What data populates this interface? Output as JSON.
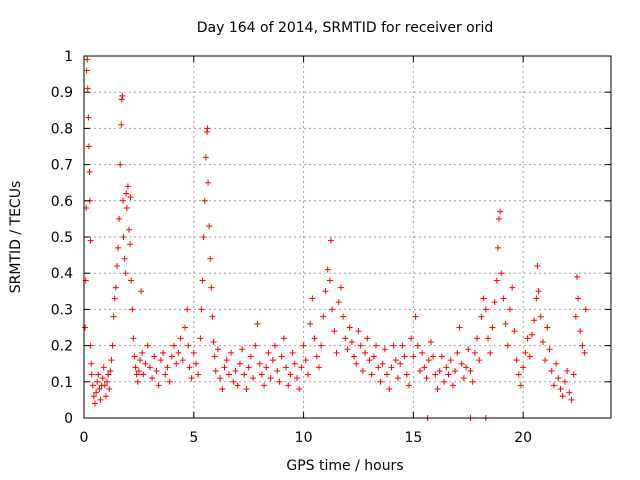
{
  "chart_data": {
    "type": "scatter",
    "title": "Day 164 of 2014, SRMTID for receiver orid",
    "xlabel": "GPS time / hours",
    "ylabel": "SRMTID / TECUs",
    "xlim": [
      0,
      24
    ],
    "ylim": [
      0,
      1
    ],
    "xticks": [
      0,
      5,
      10,
      15,
      20
    ],
    "xtick_labels": [
      "0",
      "5",
      "10",
      "15",
      "20"
    ],
    "yticks": [
      0,
      0.1,
      0.2,
      0.3,
      0.4,
      0.5,
      0.6,
      0.7,
      0.8,
      0.9,
      1
    ],
    "ytick_labels": [
      "0",
      "0.1",
      "0.2",
      "0.3",
      "0.4",
      "0.5",
      "0.6",
      "0.7",
      "0.8",
      "0.9",
      "1"
    ],
    "grid": true,
    "marker": "plus",
    "color": "#ff0000",
    "series": [
      {
        "name": "SRMTID",
        "points": [
          [
            0.05,
            0.25
          ],
          [
            0.08,
            0.38
          ],
          [
            0.1,
            0.58
          ],
          [
            0.12,
            0.96
          ],
          [
            0.15,
            0.99
          ],
          [
            0.17,
            0.91
          ],
          [
            0.2,
            0.83
          ],
          [
            0.22,
            0.75
          ],
          [
            0.25,
            0.68
          ],
          [
            0.27,
            0.6
          ],
          [
            0.3,
            0.49
          ],
          [
            0.3,
            0.2
          ],
          [
            0.33,
            0.15
          ],
          [
            0.35,
            0.12
          ],
          [
            0.4,
            0.09
          ],
          [
            0.45,
            0.06
          ],
          [
            0.5,
            0.04
          ],
          [
            0.55,
            0.07
          ],
          [
            0.6,
            0.1
          ],
          [
            0.65,
            0.12
          ],
          [
            0.7,
            0.08
          ],
          [
            0.75,
            0.05
          ],
          [
            0.8,
            0.09
          ],
          [
            0.85,
            0.11
          ],
          [
            0.9,
            0.14
          ],
          [
            0.95,
            0.09
          ],
          [
            1.0,
            0.06
          ],
          [
            1.05,
            0.1
          ],
          [
            1.1,
            0.12
          ],
          [
            1.15,
            0.08
          ],
          [
            1.2,
            0.13
          ],
          [
            1.25,
            0.16
          ],
          [
            1.3,
            0.2
          ],
          [
            1.35,
            0.28
          ],
          [
            1.4,
            0.33
          ],
          [
            1.45,
            0.36
          ],
          [
            1.5,
            0.42
          ],
          [
            1.55,
            0.47
          ],
          [
            1.6,
            0.55
          ],
          [
            1.65,
            0.7
          ],
          [
            1.7,
            0.81
          ],
          [
            1.72,
            0.88
          ],
          [
            1.75,
            0.89
          ],
          [
            1.78,
            0.6
          ],
          [
            1.8,
            0.5
          ],
          [
            1.85,
            0.44
          ],
          [
            1.9,
            0.4
          ],
          [
            1.92,
            0.62
          ],
          [
            1.95,
            0.58
          ],
          [
            2.0,
            0.64
          ],
          [
            2.05,
            0.52
          ],
          [
            2.1,
            0.48
          ],
          [
            2.12,
            0.61
          ],
          [
            2.15,
            0.38
          ],
          [
            2.2,
            0.3
          ],
          [
            2.25,
            0.22
          ],
          [
            2.3,
            0.17
          ],
          [
            2.35,
            0.14
          ],
          [
            2.4,
            0.12
          ],
          [
            2.45,
            0.1
          ],
          [
            2.5,
            0.13
          ],
          [
            2.55,
            0.16
          ],
          [
            2.6,
            0.35
          ],
          [
            2.65,
            0.18
          ],
          [
            2.7,
            0.12
          ],
          [
            2.8,
            0.15
          ],
          [
            2.9,
            0.2
          ],
          [
            3.0,
            0.14
          ],
          [
            3.1,
            0.11
          ],
          [
            3.2,
            0.17
          ],
          [
            3.3,
            0.13
          ],
          [
            3.4,
            0.09
          ],
          [
            3.5,
            0.16
          ],
          [
            3.6,
            0.18
          ],
          [
            3.7,
            0.12
          ],
          [
            3.8,
            0.14
          ],
          [
            3.9,
            0.1
          ],
          [
            4.0,
            0.17
          ],
          [
            4.1,
            0.2
          ],
          [
            4.2,
            0.15
          ],
          [
            4.3,
            0.18
          ],
          [
            4.4,
            0.22
          ],
          [
            4.5,
            0.16
          ],
          [
            4.6,
            0.25
          ],
          [
            4.7,
            0.3
          ],
          [
            4.75,
            0.2
          ],
          [
            4.8,
            0.14
          ],
          [
            4.9,
            0.11
          ],
          [
            5.0,
            0.18
          ],
          [
            5.1,
            0.15
          ],
          [
            5.2,
            0.12
          ],
          [
            5.3,
            0.22
          ],
          [
            5.35,
            0.3
          ],
          [
            5.4,
            0.38
          ],
          [
            5.45,
            0.5
          ],
          [
            5.5,
            0.6
          ],
          [
            5.55,
            0.72
          ],
          [
            5.6,
            0.79
          ],
          [
            5.62,
            0.8
          ],
          [
            5.65,
            0.65
          ],
          [
            5.7,
            0.53
          ],
          [
            5.75,
            0.44
          ],
          [
            5.8,
            0.36
          ],
          [
            5.85,
            0.28
          ],
          [
            5.9,
            0.21
          ],
          [
            5.95,
            0.17
          ],
          [
            6.0,
            0.13
          ],
          [
            6.1,
            0.19
          ],
          [
            6.2,
            0.11
          ],
          [
            6.3,
            0.08
          ],
          [
            6.4,
            0.14
          ],
          [
            6.5,
            0.16
          ],
          [
            6.6,
            0.12
          ],
          [
            6.7,
            0.18
          ],
          [
            6.8,
            0.1
          ],
          [
            6.9,
            0.13
          ],
          [
            7.0,
            0.09
          ],
          [
            7.1,
            0.15
          ],
          [
            7.2,
            0.19
          ],
          [
            7.3,
            0.12
          ],
          [
            7.4,
            0.08
          ],
          [
            7.5,
            0.14
          ],
          [
            7.6,
            0.17
          ],
          [
            7.7,
            0.11
          ],
          [
            7.8,
            0.2
          ],
          [
            7.9,
            0.26
          ],
          [
            8.0,
            0.15
          ],
          [
            8.1,
            0.12
          ],
          [
            8.2,
            0.09
          ],
          [
            8.3,
            0.14
          ],
          [
            8.4,
            0.18
          ],
          [
            8.5,
            0.11
          ],
          [
            8.6,
            0.16
          ],
          [
            8.7,
            0.2
          ],
          [
            8.8,
            0.13
          ],
          [
            8.9,
            0.1
          ],
          [
            9.0,
            0.17
          ],
          [
            9.1,
            0.22
          ],
          [
            9.2,
            0.14
          ],
          [
            9.3,
            0.09
          ],
          [
            9.4,
            0.12
          ],
          [
            9.5,
            0.18
          ],
          [
            9.6,
            0.15
          ],
          [
            9.7,
            0.11
          ],
          [
            9.8,
            0.08
          ],
          [
            9.9,
            0.14
          ],
          [
            10.0,
            0.2
          ],
          [
            10.1,
            0.16
          ],
          [
            10.2,
            0.12
          ],
          [
            10.3,
            0.26
          ],
          [
            10.4,
            0.33
          ],
          [
            10.5,
            0.22
          ],
          [
            10.6,
            0.17
          ],
          [
            10.7,
            0.14
          ],
          [
            10.8,
            0.2
          ],
          [
            10.9,
            0.28
          ],
          [
            11.0,
            0.35
          ],
          [
            11.1,
            0.41
          ],
          [
            11.2,
            0.38
          ],
          [
            11.25,
            0.49
          ],
          [
            11.3,
            0.3
          ],
          [
            11.4,
            0.24
          ],
          [
            11.5,
            0.18
          ],
          [
            11.6,
            0.32
          ],
          [
            11.7,
            0.36
          ],
          [
            11.8,
            0.28
          ],
          [
            11.9,
            0.22
          ],
          [
            12.0,
            0.19
          ],
          [
            12.1,
            0.25
          ],
          [
            12.2,
            0.21
          ],
          [
            12.3,
            0.17
          ],
          [
            12.4,
            0.15
          ],
          [
            12.5,
            0.24
          ],
          [
            12.6,
            0.2
          ],
          [
            12.7,
            0.13
          ],
          [
            12.8,
            0.18
          ],
          [
            12.9,
            0.22
          ],
          [
            13.0,
            0.16
          ],
          [
            13.1,
            0.12
          ],
          [
            13.2,
            0.17
          ],
          [
            13.3,
            0.2
          ],
          [
            13.4,
            0.14
          ],
          [
            13.5,
            0.1
          ],
          [
            13.6,
            0.15
          ],
          [
            13.7,
            0.19
          ],
          [
            13.8,
            0.12
          ],
          [
            13.9,
            0.08
          ],
          [
            14.0,
            0.14
          ],
          [
            14.1,
            0.2
          ],
          [
            14.2,
            0.16
          ],
          [
            14.3,
            0.11
          ],
          [
            14.4,
            0.15
          ],
          [
            14.5,
            0.2
          ],
          [
            14.6,
            0.17
          ],
          [
            14.7,
            0.12
          ],
          [
            14.8,
            0.09
          ],
          [
            14.9,
            0.22
          ],
          [
            15.0,
            0.17
          ],
          [
            15.1,
            0.28
          ],
          [
            15.2,
            0.2
          ],
          [
            15.3,
            0.13
          ],
          [
            15.4,
            0.18
          ],
          [
            15.5,
            0.14
          ],
          [
            15.6,
            0.11
          ],
          [
            15.7,
            0.16
          ],
          [
            15.8,
            0.21
          ],
          [
            15.9,
            0.17
          ],
          [
            16.0,
            0.12
          ],
          [
            16.1,
            0.08
          ],
          [
            16.2,
            0.13
          ],
          [
            16.3,
            0.17
          ],
          [
            16.4,
            0.1
          ],
          [
            16.5,
            0.14
          ],
          [
            16.6,
            0.12
          ],
          [
            16.7,
            0.16
          ],
          [
            16.8,
            0.09
          ],
          [
            16.9,
            0.13
          ],
          [
            17.0,
            0.18
          ],
          [
            17.1,
            0.25
          ],
          [
            17.2,
            0.15
          ],
          [
            17.3,
            0.11
          ],
          [
            17.4,
            0.14
          ],
          [
            17.5,
            0.19
          ],
          [
            17.6,
            0.13
          ],
          [
            17.7,
            0.1
          ],
          [
            17.8,
            0.18
          ],
          [
            17.9,
            0.22
          ],
          [
            18.0,
            0.16
          ],
          [
            18.1,
            0.28
          ],
          [
            18.2,
            0.33
          ],
          [
            18.3,
            0.3
          ],
          [
            18.4,
            0.22
          ],
          [
            18.5,
            0.18
          ],
          [
            18.6,
            0.25
          ],
          [
            18.7,
            0.32
          ],
          [
            18.8,
            0.38
          ],
          [
            18.85,
            0.47
          ],
          [
            18.9,
            0.55
          ],
          [
            18.95,
            0.57
          ],
          [
            19.0,
            0.4
          ],
          [
            19.1,
            0.33
          ],
          [
            19.2,
            0.26
          ],
          [
            19.3,
            0.2
          ],
          [
            19.4,
            0.3
          ],
          [
            19.5,
            0.36
          ],
          [
            19.6,
            0.24
          ],
          [
            19.7,
            0.16
          ],
          [
            19.8,
            0.12
          ],
          [
            19.9,
            0.09
          ],
          [
            20.0,
            0.14
          ],
          [
            20.1,
            0.18
          ],
          [
            20.2,
            0.22
          ],
          [
            20.3,
            0.17
          ],
          [
            20.4,
            0.23
          ],
          [
            20.5,
            0.27
          ],
          [
            20.6,
            0.33
          ],
          [
            20.65,
            0.42
          ],
          [
            20.7,
            0.35
          ],
          [
            20.8,
            0.28
          ],
          [
            20.9,
            0.21
          ],
          [
            21.0,
            0.16
          ],
          [
            21.1,
            0.25
          ],
          [
            21.2,
            0.19
          ],
          [
            21.3,
            0.13
          ],
          [
            21.4,
            0.09
          ],
          [
            21.5,
            0.15
          ],
          [
            21.6,
            0.11
          ],
          [
            21.7,
            0.08
          ],
          [
            21.8,
            0.06
          ],
          [
            21.9,
            0.1
          ],
          [
            22.0,
            0.13
          ],
          [
            22.1,
            0.07
          ],
          [
            22.2,
            0.05
          ],
          [
            22.3,
            0.12
          ],
          [
            22.4,
            0.28
          ],
          [
            22.45,
            0.39
          ],
          [
            22.5,
            0.33
          ],
          [
            22.6,
            0.24
          ],
          [
            22.7,
            0.2
          ],
          [
            22.8,
            0.18
          ],
          [
            22.85,
            0.3
          ],
          [
            15.65,
            0.0
          ],
          [
            17.6,
            0.0
          ],
          [
            18.3,
            0.0
          ]
        ]
      }
    ]
  }
}
